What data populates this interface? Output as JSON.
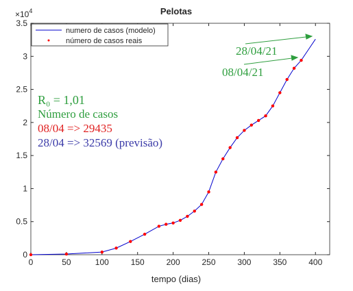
{
  "chart_data": {
    "type": "line",
    "title": "Pelotas",
    "xlabel": "tempo (dias)",
    "y_exponent": {
      "base": "×10",
      "power": "4"
    },
    "xlim": [
      0,
      420
    ],
    "xticks": [
      0,
      50,
      100,
      150,
      200,
      250,
      300,
      350,
      400
    ],
    "ylim": [
      0,
      3.5
    ],
    "yticks": [
      0,
      0.5,
      1,
      1.5,
      2,
      2.5,
      3,
      3.5
    ],
    "grid": false,
    "legend": "upper left",
    "series": [
      {
        "name": "numero de casos (modelo)",
        "color": "#0000cd",
        "style": "line",
        "x": [
          0,
          50,
          100,
          120,
          140,
          160,
          180,
          190,
          200,
          210,
          220,
          230,
          240,
          250,
          260,
          270,
          280,
          290,
          300,
          310,
          320,
          330,
          340,
          350,
          360,
          370,
          380,
          390,
          400
        ],
        "values": [
          0,
          0.01,
          0.04,
          0.1,
          0.2,
          0.31,
          0.43,
          0.46,
          0.48,
          0.52,
          0.58,
          0.66,
          0.76,
          0.95,
          1.25,
          1.45,
          1.62,
          1.77,
          1.88,
          1.96,
          2.03,
          2.1,
          2.25,
          2.45,
          2.65,
          2.82,
          2.94,
          3.1,
          3.26
        ]
      },
      {
        "name": "número de casos reais",
        "color": "#ff0000",
        "style": "dots",
        "x": [
          0,
          50,
          100,
          120,
          140,
          160,
          180,
          190,
          200,
          210,
          220,
          230,
          240,
          250,
          260,
          270,
          280,
          290,
          300,
          310,
          320,
          330,
          340,
          350,
          360,
          370,
          380
        ],
        "values": [
          0,
          0.01,
          0.04,
          0.1,
          0.2,
          0.31,
          0.43,
          0.46,
          0.48,
          0.52,
          0.58,
          0.66,
          0.76,
          0.95,
          1.25,
          1.45,
          1.62,
          1.77,
          1.88,
          1.96,
          2.03,
          2.1,
          2.25,
          2.45,
          2.65,
          2.82,
          2.94
        ]
      }
    ],
    "annotations": {
      "date_1": "28/04/21",
      "date_2": "08/04/21",
      "r0": "R₀ = 1,01",
      "heading": "Número de casos",
      "real": "08/04 => 29435",
      "forecast": "28/04 => 32569 (previsão)"
    }
  }
}
